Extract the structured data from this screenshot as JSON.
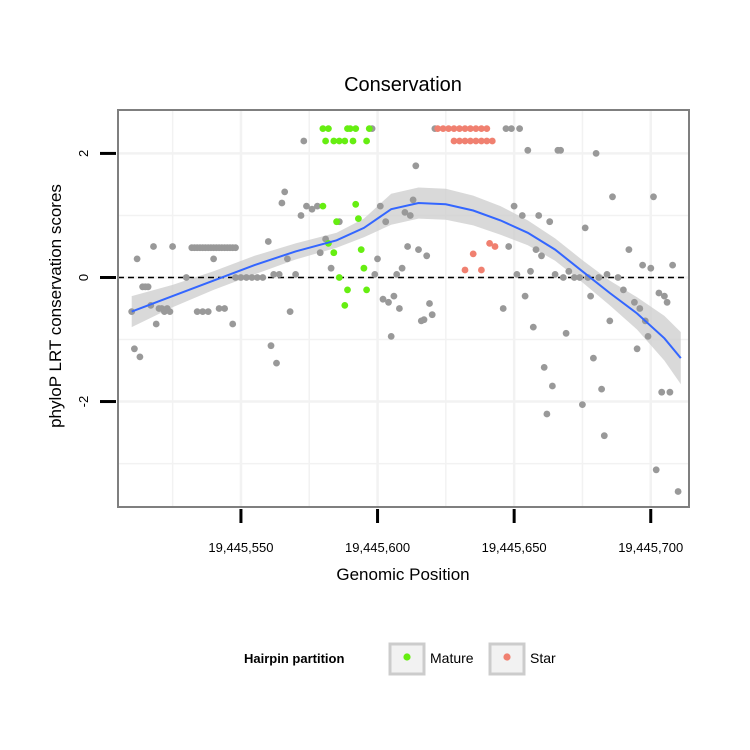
{
  "chart_data": {
    "type": "scatter",
    "title": "Conservation",
    "xlabel": "Genomic Position",
    "ylabel": "phyloP LRT conservation scores",
    "xlim": [
      19445505,
      19445714
    ],
    "ylim": [
      -3.7,
      2.7
    ],
    "x_ticks": [
      19445550,
      19445600,
      19445650,
      19445700
    ],
    "x_tick_labels": [
      "19,445,550",
      "19,445,600",
      "19,445,650",
      "19,445,700"
    ],
    "y_ticks": [
      -2,
      0,
      2
    ],
    "y_tick_labels": [
      "-2",
      "0",
      "2"
    ],
    "grid": true,
    "reference_line": {
      "y": 0,
      "style": "dashed",
      "color": "#000000"
    },
    "legend": {
      "title": "Hairpin partition",
      "position": "bottom",
      "entries": [
        {
          "label": "Mature",
          "color": "#66ee11"
        },
        {
          "label": "Star",
          "color": "#f08070"
        }
      ]
    },
    "colors": {
      "other": "#999999",
      "smooth": "#3366ff",
      "band": "#cccccc",
      "panel_border": "#7f7f7f",
      "grid": "#f2f2f2"
    },
    "smooth": {
      "x": [
        19445510,
        19445525,
        19445540,
        19445555,
        19445570,
        19445585,
        19445595,
        19445605,
        19445615,
        19445625,
        19445635,
        19445645,
        19445655,
        19445665,
        19445675,
        19445685,
        19445695,
        19445705,
        19445711
      ],
      "y": [
        -0.55,
        -0.3,
        -0.05,
        0.2,
        0.42,
        0.6,
        0.8,
        1.1,
        1.2,
        1.18,
        1.08,
        0.92,
        0.72,
        0.45,
        0.1,
        -0.25,
        -0.58,
        -0.98,
        -1.3
      ],
      "band_upper": [
        -0.3,
        -0.12,
        0.1,
        0.35,
        0.55,
        0.72,
        0.95,
        1.35,
        1.45,
        1.43,
        1.32,
        1.15,
        0.92,
        0.63,
        0.28,
        -0.05,
        -0.32,
        -0.62,
        -0.88
      ],
      "band_lower": [
        -0.8,
        -0.48,
        -0.2,
        0.05,
        0.29,
        0.48,
        0.65,
        0.85,
        0.95,
        0.93,
        0.84,
        0.69,
        0.52,
        0.27,
        -0.08,
        -0.45,
        -0.84,
        -1.34,
        -1.72
      ]
    },
    "series": [
      {
        "name": "Mature",
        "points": [
          [
            19445580,
            2.4
          ],
          [
            19445581,
            2.2
          ],
          [
            19445582,
            2.4
          ],
          [
            19445584,
            2.2
          ],
          [
            19445586,
            2.2
          ],
          [
            19445588,
            2.2
          ],
          [
            19445589,
            2.4
          ],
          [
            19445590,
            2.4
          ],
          [
            19445591,
            2.2
          ],
          [
            19445592,
            2.4
          ],
          [
            19445596,
            2.2
          ],
          [
            19445597,
            2.4
          ],
          [
            19445580,
            1.15
          ],
          [
            19445582,
            0.55
          ],
          [
            19445584,
            0.4
          ],
          [
            19445585,
            0.9
          ],
          [
            19445586,
            0.0
          ],
          [
            19445588,
            -0.45
          ],
          [
            19445589,
            -0.2
          ],
          [
            19445592,
            1.18
          ],
          [
            19445593,
            0.95
          ],
          [
            19445594,
            0.45
          ],
          [
            19445595,
            0.15
          ],
          [
            19445596,
            -0.2
          ]
        ]
      },
      {
        "name": "Star",
        "points": [
          [
            19445622,
            2.4
          ],
          [
            19445624,
            2.4
          ],
          [
            19445626,
            2.4
          ],
          [
            19445628,
            2.4
          ],
          [
            19445630,
            2.4
          ],
          [
            19445632,
            2.4
          ],
          [
            19445634,
            2.4
          ],
          [
            19445636,
            2.4
          ],
          [
            19445638,
            2.4
          ],
          [
            19445640,
            2.4
          ],
          [
            19445628,
            2.2
          ],
          [
            19445630,
            2.2
          ],
          [
            19445632,
            2.2
          ],
          [
            19445634,
            2.2
          ],
          [
            19445636,
            2.2
          ],
          [
            19445638,
            2.2
          ],
          [
            19445640,
            2.2
          ],
          [
            19445642,
            2.2
          ],
          [
            19445632,
            0.12
          ],
          [
            19445635,
            0.38
          ],
          [
            19445638,
            0.12
          ],
          [
            19445641,
            0.55
          ],
          [
            19445643,
            0.5
          ]
        ]
      },
      {
        "name": "",
        "points": [
          [
            19445510,
            -0.55
          ],
          [
            19445511,
            -1.15
          ],
          [
            19445512,
            0.3
          ],
          [
            19445513,
            -1.28
          ],
          [
            19445514,
            -0.15
          ],
          [
            19445515,
            -0.15
          ],
          [
            19445516,
            -0.15
          ],
          [
            19445517,
            -0.45
          ],
          [
            19445518,
            0.5
          ],
          [
            19445519,
            -0.75
          ],
          [
            19445520,
            -0.5
          ],
          [
            19445521,
            -0.5
          ],
          [
            19445522,
            -0.55
          ],
          [
            19445523,
            -0.5
          ],
          [
            19445524,
            -0.55
          ],
          [
            19445525,
            0.5
          ],
          [
            19445530,
            0.0
          ],
          [
            19445532,
            0.48
          ],
          [
            19445533,
            0.48
          ],
          [
            19445534,
            0.48
          ],
          [
            19445535,
            0.48
          ],
          [
            19445536,
            0.48
          ],
          [
            19445537,
            0.48
          ],
          [
            19445538,
            0.48
          ],
          [
            19445539,
            0.48
          ],
          [
            19445540,
            0.48
          ],
          [
            19445541,
            0.48
          ],
          [
            19445542,
            0.48
          ],
          [
            19445543,
            0.48
          ],
          [
            19445544,
            0.48
          ],
          [
            19445545,
            0.48
          ],
          [
            19445546,
            0.48
          ],
          [
            19445547,
            0.48
          ],
          [
            19445548,
            0.48
          ],
          [
            19445534,
            -0.55
          ],
          [
            19445536,
            -0.55
          ],
          [
            19445538,
            -0.55
          ],
          [
            19445540,
            0.3
          ],
          [
            19445542,
            -0.5
          ],
          [
            19445544,
            -0.5
          ],
          [
            19445547,
            -0.75
          ],
          [
            19445548,
            0.0
          ],
          [
            19445550,
            0.0
          ],
          [
            19445552,
            0.0
          ],
          [
            19445554,
            0.0
          ],
          [
            19445556,
            0.0
          ],
          [
            19445558,
            0.0
          ],
          [
            19445560,
            0.58
          ],
          [
            19445561,
            -1.1
          ],
          [
            19445562,
            0.05
          ],
          [
            19445563,
            -1.38
          ],
          [
            19445564,
            0.05
          ],
          [
            19445565,
            1.2
          ],
          [
            19445566,
            1.38
          ],
          [
            19445567,
            0.3
          ],
          [
            19445568,
            -0.55
          ],
          [
            19445570,
            0.05
          ],
          [
            19445572,
            1.0
          ],
          [
            19445573,
            2.2
          ],
          [
            19445574,
            1.15
          ],
          [
            19445576,
            1.1
          ],
          [
            19445578,
            1.15
          ],
          [
            19445579,
            0.4
          ],
          [
            19445581,
            0.62
          ],
          [
            19445583,
            0.15
          ],
          [
            19445586,
            0.9
          ],
          [
            19445598,
            2.4
          ],
          [
            19445599,
            0.05
          ],
          [
            19445600,
            0.3
          ],
          [
            19445601,
            1.15
          ],
          [
            19445602,
            -0.35
          ],
          [
            19445603,
            0.9
          ],
          [
            19445604,
            -0.4
          ],
          [
            19445605,
            -0.95
          ],
          [
            19445606,
            -0.3
          ],
          [
            19445607,
            0.05
          ],
          [
            19445608,
            -0.5
          ],
          [
            19445609,
            0.15
          ],
          [
            19445610,
            1.05
          ],
          [
            19445611,
            0.5
          ],
          [
            19445612,
            1.0
          ],
          [
            19445613,
            1.25
          ],
          [
            19445614,
            1.8
          ],
          [
            19445615,
            0.45
          ],
          [
            19445616,
            -0.7
          ],
          [
            19445617,
            -0.68
          ],
          [
            19445618,
            0.35
          ],
          [
            19445619,
            -0.42
          ],
          [
            19445620,
            -0.6
          ],
          [
            19445621,
            2.4
          ],
          [
            19445646,
            -0.5
          ],
          [
            19445647,
            2.4
          ],
          [
            19445648,
            0.5
          ],
          [
            19445649,
            2.4
          ],
          [
            19445650,
            1.15
          ],
          [
            19445651,
            0.05
          ],
          [
            19445652,
            2.4
          ],
          [
            19445653,
            1.0
          ],
          [
            19445654,
            -0.3
          ],
          [
            19445655,
            2.05
          ],
          [
            19445656,
            0.1
          ],
          [
            19445657,
            -0.8
          ],
          [
            19445658,
            0.45
          ],
          [
            19445659,
            1.0
          ],
          [
            19445660,
            0.35
          ],
          [
            19445661,
            -1.45
          ],
          [
            19445662,
            -2.2
          ],
          [
            19445663,
            0.9
          ],
          [
            19445664,
            -1.75
          ],
          [
            19445665,
            0.05
          ],
          [
            19445666,
            2.05
          ],
          [
            19445667,
            2.05
          ],
          [
            19445668,
            0.0
          ],
          [
            19445669,
            -0.9
          ],
          [
            19445670,
            0.1
          ],
          [
            19445672,
            0.0
          ],
          [
            19445674,
            0.0
          ],
          [
            19445675,
            -2.05
          ],
          [
            19445676,
            0.8
          ],
          [
            19445677,
            0.0
          ],
          [
            19445678,
            -0.3
          ],
          [
            19445679,
            -1.3
          ],
          [
            19445680,
            2.0
          ],
          [
            19445681,
            0.0
          ],
          [
            19445682,
            -1.8
          ],
          [
            19445683,
            -2.55
          ],
          [
            19445684,
            0.05
          ],
          [
            19445685,
            -0.7
          ],
          [
            19445686,
            1.3
          ],
          [
            19445688,
            0.0
          ],
          [
            19445690,
            -0.2
          ],
          [
            19445692,
            0.45
          ],
          [
            19445694,
            -0.4
          ],
          [
            19445695,
            -1.15
          ],
          [
            19445696,
            -0.5
          ],
          [
            19445697,
            0.2
          ],
          [
            19445698,
            -0.7
          ],
          [
            19445699,
            -0.95
          ],
          [
            19445700,
            0.15
          ],
          [
            19445701,
            1.3
          ],
          [
            19445702,
            -3.1
          ],
          [
            19445703,
            -0.25
          ],
          [
            19445704,
            -1.85
          ],
          [
            19445705,
            -0.3
          ],
          [
            19445706,
            -0.4
          ],
          [
            19445707,
            -1.85
          ],
          [
            19445708,
            0.2
          ],
          [
            19445710,
            -3.45
          ]
        ]
      }
    ]
  }
}
